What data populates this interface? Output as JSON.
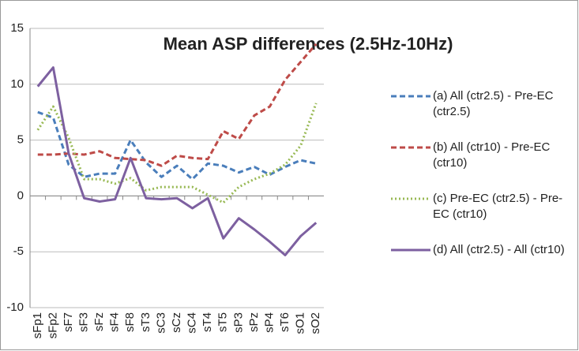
{
  "chart_data": {
    "type": "line",
    "title": "Mean ASP differences (2.5Hz-10Hz)",
    "categories": [
      "sFp1",
      "sFp2",
      "sF7",
      "sF3",
      "sFz",
      "sF4",
      "sF8",
      "sT3",
      "sC3",
      "sCz",
      "sC4",
      "sT4",
      "sT5",
      "sP3",
      "sPz",
      "sP4",
      "sT6",
      "sO1",
      "sO2"
    ],
    "series": [
      {
        "name": "(a) All (ctr2.5) - Pre-EC (ctr2.5)",
        "color": "#4a7ebb",
        "dash": "dashed",
        "values": [
          7.5,
          7,
          2.8,
          1.7,
          2,
          2,
          5,
          3,
          1.7,
          2.7,
          1.5,
          2.9,
          2.7,
          2.1,
          2.6,
          1.9,
          2.6,
          3.2,
          2.9
        ]
      },
      {
        "name": "(b) All (ctr10) - Pre-EC (ctr10)",
        "color": "#be4b48",
        "dash": "dashed",
        "values": [
          3.7,
          3.7,
          3.8,
          3.7,
          4,
          3.4,
          3.3,
          3.2,
          2.7,
          3.6,
          3.4,
          3.3,
          5.8,
          5.1,
          7.2,
          8,
          10.4,
          12,
          13.6
        ]
      },
      {
        "name": "(c) Pre-EC (ctr2.5) - Pre-EC (ctr10)",
        "color": "#98b954",
        "dash": "dotted",
        "values": [
          5.9,
          8,
          5.2,
          1.5,
          1.5,
          1.1,
          1.6,
          0.5,
          0.8,
          0.8,
          0.8,
          0.1,
          -0.6,
          0.8,
          1.5,
          2,
          2.8,
          4.5,
          8.3
        ]
      },
      {
        "name": "(d) All (ctr2.5) - All (ctr10)",
        "color": "#7d60a0",
        "dash": "solid",
        "values": [
          9.8,
          11.5,
          3.8,
          -0.2,
          -0.5,
          -0.3,
          3.4,
          -0.2,
          -0.3,
          -0.2,
          -1.1,
          -0.2,
          -3.8,
          -2,
          -3,
          -4.1,
          -5.3,
          -3.6,
          -2.4
        ]
      }
    ],
    "ylim": [
      -10,
      15
    ],
    "yticks": [
      -10,
      -5,
      0,
      5,
      10,
      15
    ],
    "grid": true,
    "legend": "right"
  }
}
